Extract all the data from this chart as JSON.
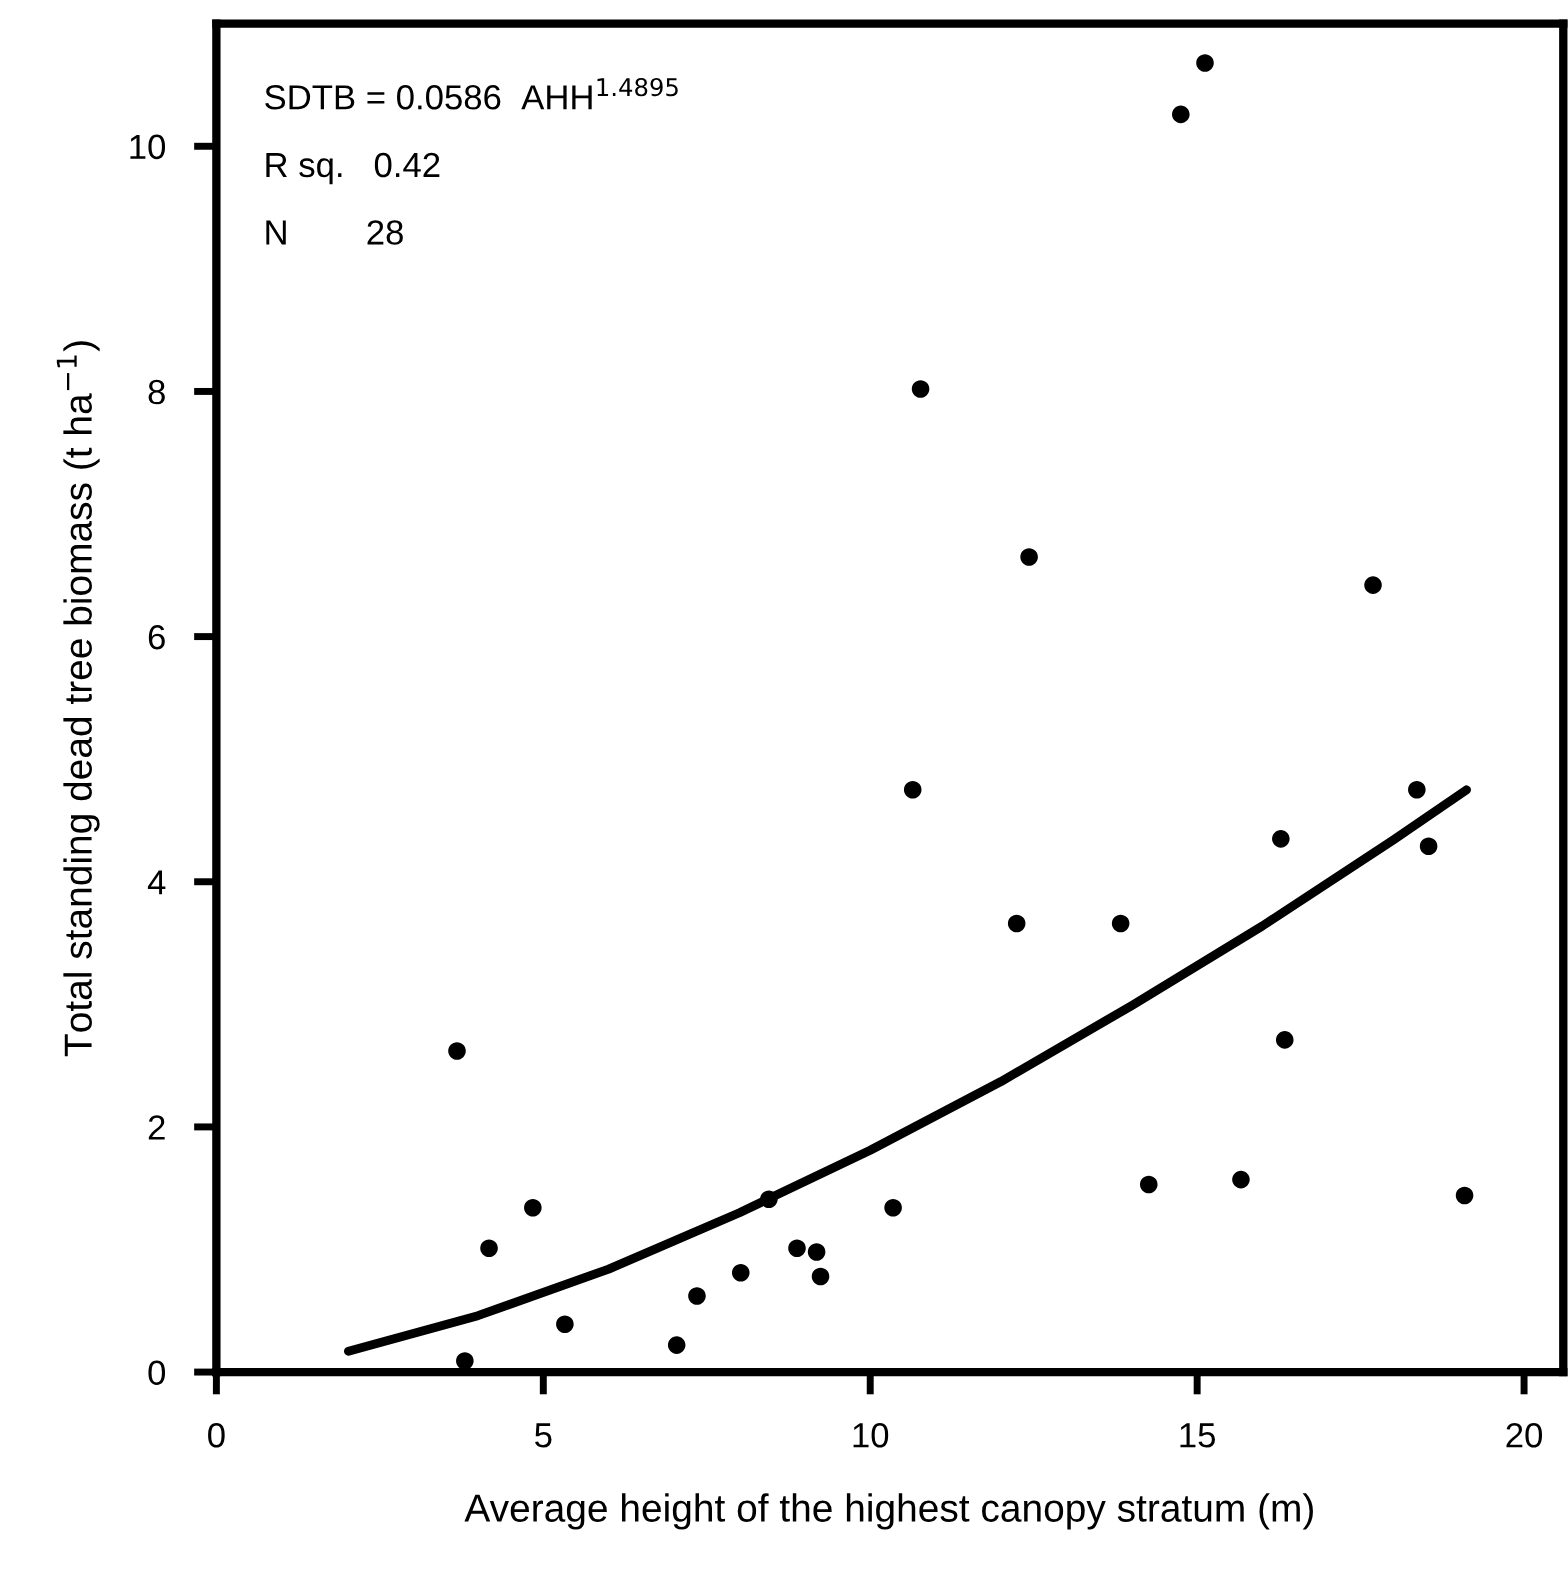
{
  "chart_data": {
    "type": "scatter",
    "xlabel": "Average height of the highest canopy stratum (m)",
    "ylabel": "Total standing dead tree biomass (t ha$^{−1}$)",
    "annotations": [
      "SDTB = 0.0586  AHH$^{1.4895}$",
      "R sq.   0.42",
      "N        28"
    ],
    "xlim": [
      0,
      20.6
    ],
    "xticks": [
      0,
      5,
      10,
      15,
      20
    ],
    "ylim": [
      0,
      11
    ],
    "yticks": [
      0,
      2,
      4,
      6,
      8,
      10
    ],
    "grid": false,
    "legend": false,
    "marker": "circle",
    "series": [
      {
        "color": "#000000",
        "x": [
          3.68,
          4.84,
          4.17,
          3.8,
          5.33,
          7.04,
          7.35,
          8.02,
          8.45,
          8.88,
          9.18,
          9.24,
          10.35,
          10.65,
          12.24,
          13.83,
          14.26,
          15.67,
          16.28,
          16.34,
          18.36,
          18.54,
          19.09,
          15.12,
          14.75,
          10.77,
          12.43,
          17.69
        ],
        "values": [
          2.62,
          1.34,
          1.01,
          0.09,
          0.39,
          0.22,
          0.62,
          0.81,
          1.41,
          1.01,
          0.98,
          0.78,
          1.34,
          4.75,
          3.66,
          3.66,
          1.53,
          1.57,
          4.35,
          2.71,
          4.75,
          4.29,
          1.44,
          10.68,
          10.26,
          8.02,
          6.65,
          6.42
        ]
      },
      {
        "type": "line",
        "color": "#000000",
        "line_style": "solid",
        "marker": "none",
        "x": [
          2.02,
          4,
          6,
          8,
          10,
          12,
          14,
          16,
          18,
          19.12
        ],
        "values": [
          0.17,
          0.46,
          0.84,
          1.3,
          1.81,
          2.37,
          2.99,
          3.64,
          4.34,
          4.75
        ]
      }
    ]
  }
}
